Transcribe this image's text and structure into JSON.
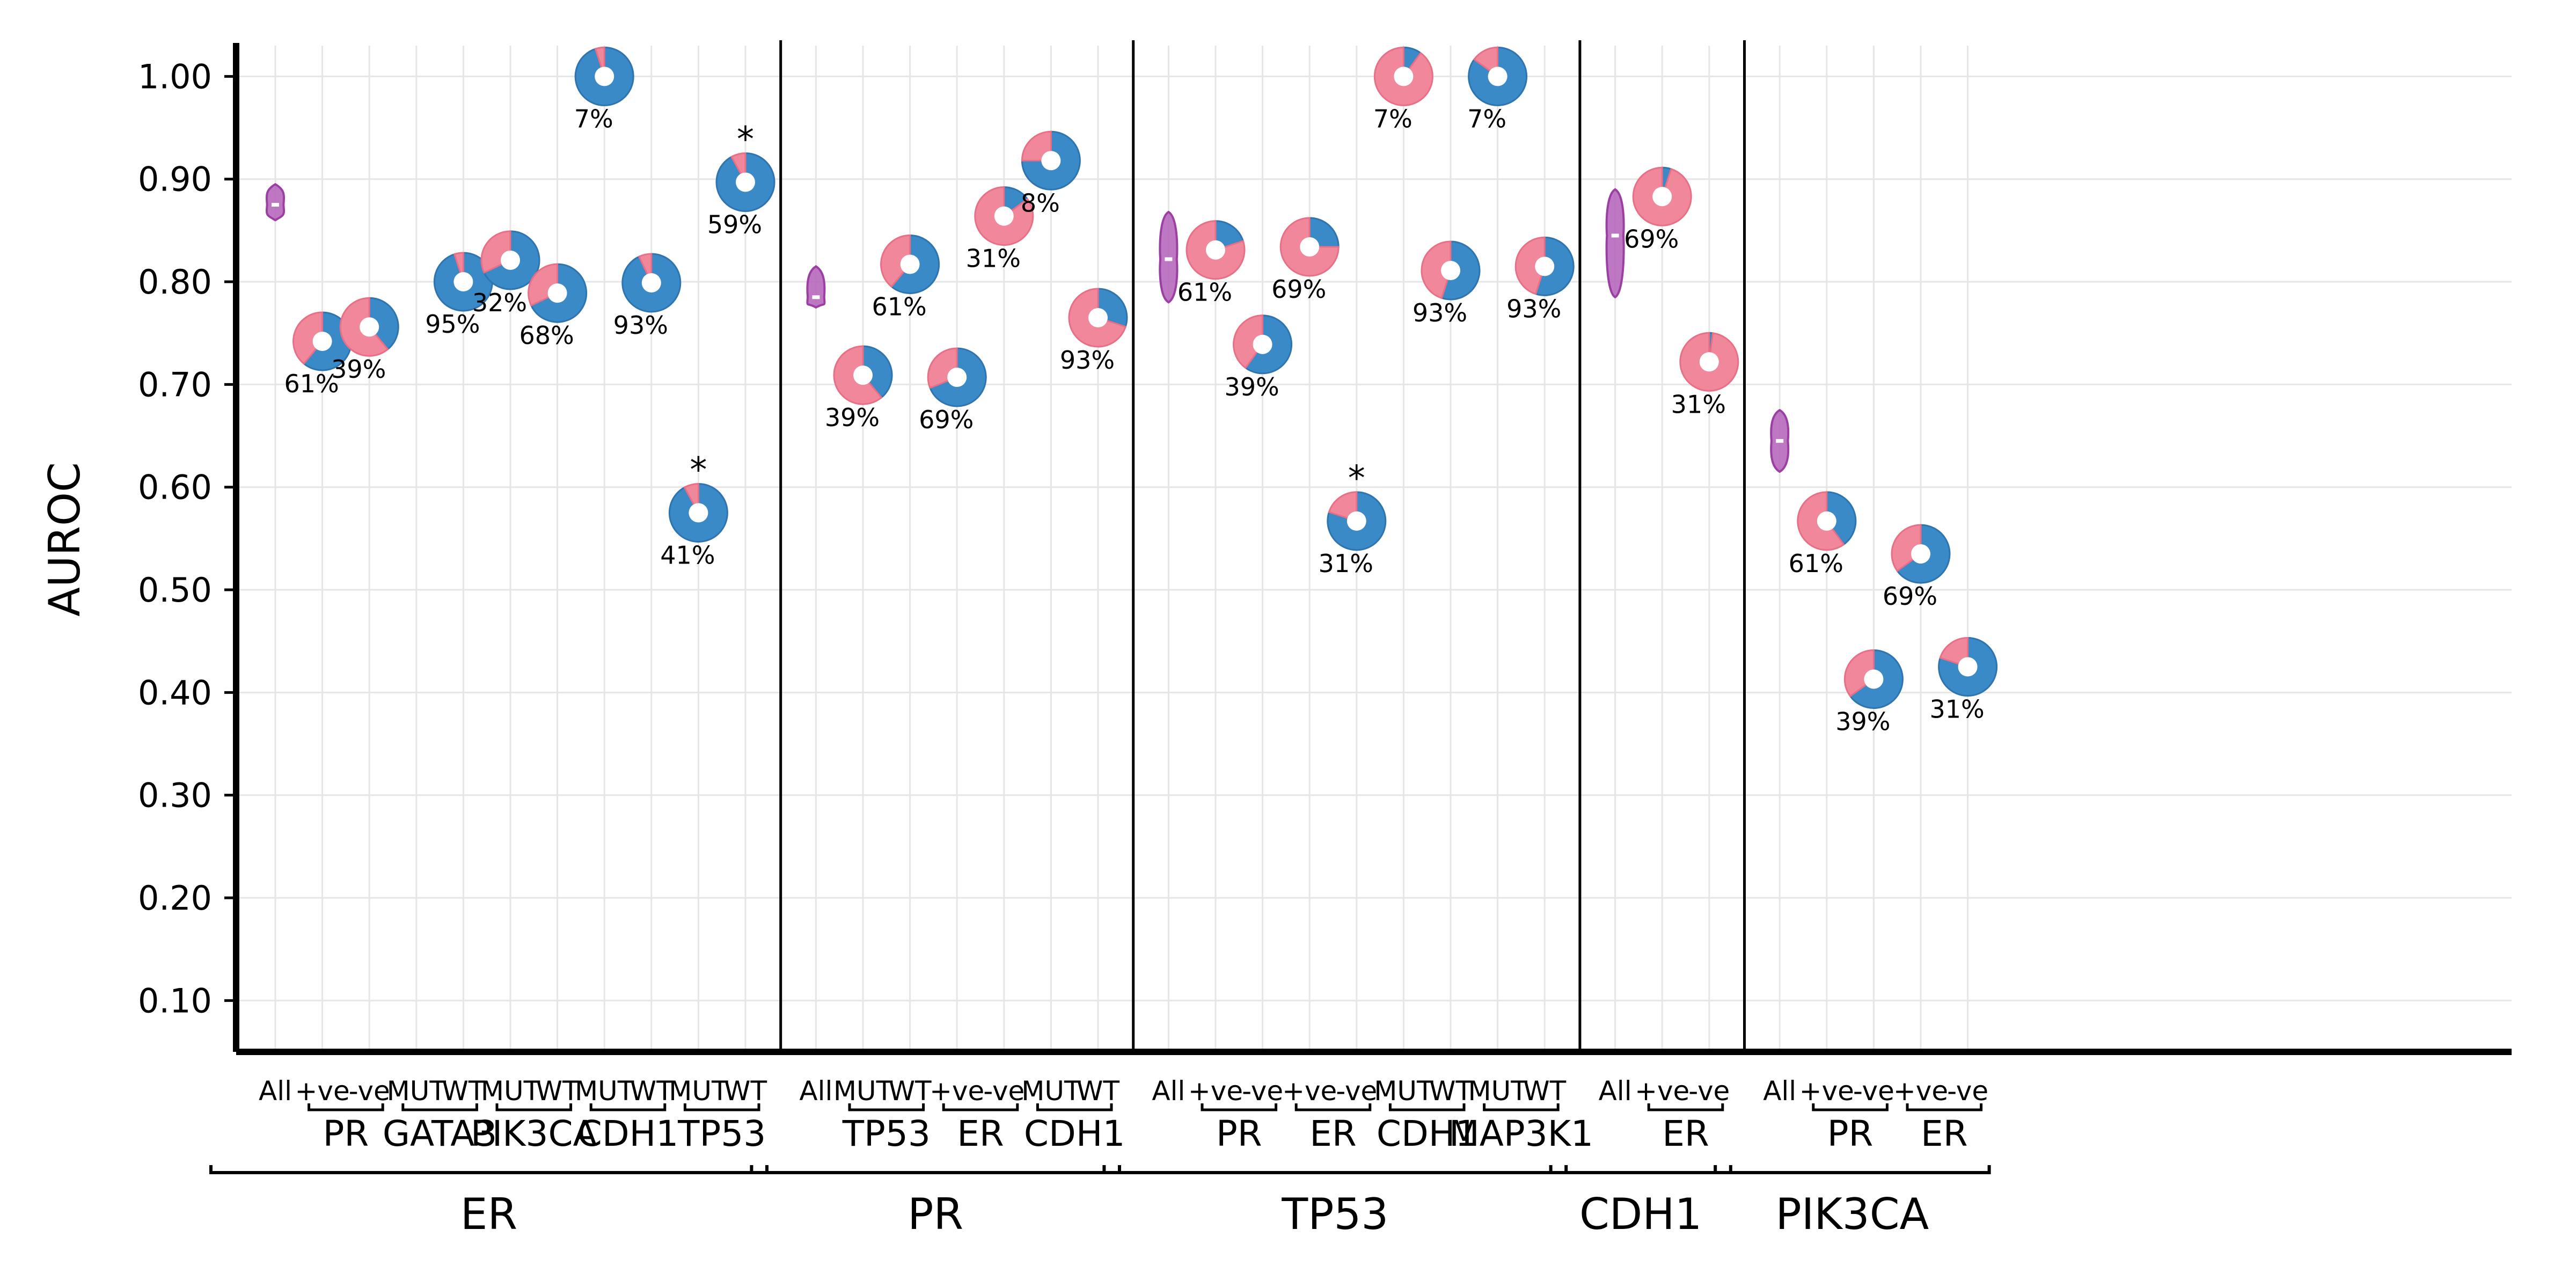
{
  "chart_data": {
    "type": "scatter",
    "ylabel": "AUROC",
    "ylim": [
      0.05,
      1.03
    ],
    "yticks": [
      "0.10",
      "0.20",
      "0.30",
      "0.40",
      "0.50",
      "0.60",
      "0.70",
      "0.80",
      "0.90",
      "1.00"
    ],
    "grid": true,
    "colors": {
      "pos": "#f0879a",
      "neg": "#3a8ac8",
      "violin": "#b35fb8",
      "violin_edge": "#9b3fa3"
    },
    "panels": [
      {
        "label": "ER",
        "violin": {
          "label": "All",
          "median": 0.875,
          "min": 0.86,
          "max": 0.895
        },
        "groups": [
          {
            "label": "PR",
            "points": [
              {
                "label": "+ve",
                "auroc": 0.742,
                "pct": "61%",
                "share": 0.61
              },
              {
                "label": "-ve",
                "auroc": 0.756,
                "pct": "39%",
                "share": 0.39
              }
            ]
          },
          {
            "label": "GATA3",
            "points": [
              {
                "label": "MUT",
                "auroc": null
              },
              {
                "label": "WT",
                "auroc": 0.8,
                "pct": "95%",
                "share": 0.95
              }
            ]
          },
          {
            "label": "PIK3CA",
            "points": [
              {
                "label": "MUT",
                "auroc": 0.821,
                "pct": "32%",
                "share": 0.68
              },
              {
                "label": "WT",
                "auroc": 0.789,
                "pct": "68%",
                "share": 0.68
              }
            ]
          },
          {
            "label": "CDH1",
            "points": [
              {
                "label": "MUT",
                "auroc": 1.0,
                "pct": "7%",
                "share": 0.95
              },
              {
                "label": "WT",
                "auroc": 0.799,
                "pct": "93%",
                "share": 0.93
              }
            ]
          },
          {
            "label": "TP53",
            "points": [
              {
                "label": "MUT",
                "auroc": 0.575,
                "pct": "41%",
                "share": 0.92,
                "sig": "*"
              },
              {
                "label": "WT",
                "auroc": 0.897,
                "pct": "59%",
                "share": 0.92,
                "sig": "*"
              }
            ]
          }
        ]
      },
      {
        "label": "PR",
        "violin": {
          "label": "All",
          "median": 0.785,
          "min": 0.775,
          "max": 0.815
        },
        "groups": [
          {
            "label": "TP53",
            "points": [
              {
                "label": "MUT",
                "auroc": 0.709,
                "pct": "39%",
                "share": 0.39
              },
              {
                "label": "WT",
                "auroc": 0.817,
                "pct": "61%",
                "share": 0.61
              }
            ]
          },
          {
            "label": "ER",
            "points": [
              {
                "label": "+ve",
                "auroc": 0.707,
                "pct": "69%",
                "share": 0.69
              },
              {
                "label": "-ve",
                "auroc": 0.864,
                "pct": "31%",
                "share": 0.15
              }
            ]
          },
          {
            "label": "CDH1",
            "points": [
              {
                "label": "MUT",
                "auroc": 0.918,
                "pct": "8%",
                "share": 0.75
              },
              {
                "label": "WT",
                "auroc": 0.765,
                "pct": "93%",
                "share": 0.3
              }
            ]
          }
        ]
      },
      {
        "label": "TP53",
        "violin": {
          "label": "All",
          "median": 0.822,
          "min": 0.78,
          "max": 0.868
        },
        "groups": [
          {
            "label": "PR",
            "points": [
              {
                "label": "+ve",
                "auroc": 0.831,
                "pct": "61%",
                "share": 0.2
              },
              {
                "label": "-ve",
                "auroc": 0.739,
                "pct": "39%",
                "share": 0.6
              }
            ]
          },
          {
            "label": "ER",
            "points": [
              {
                "label": "+ve",
                "auroc": 0.834,
                "pct": "69%",
                "share": 0.25
              },
              {
                "label": "-ve",
                "auroc": 0.567,
                "pct": "31%",
                "share": 0.8,
                "sig": "*"
              }
            ]
          },
          {
            "label": "CDH1",
            "points": [
              {
                "label": "MUT",
                "auroc": 1.0,
                "pct": "7%",
                "share": 0.1
              },
              {
                "label": "WT",
                "auroc": 0.811,
                "pct": "93%",
                "share": 0.55
              }
            ]
          },
          {
            "label": "MAP3K1",
            "points": [
              {
                "label": "MUT",
                "auroc": 1.0,
                "pct": "7%",
                "share": 0.85
              },
              {
                "label": "WT",
                "auroc": 0.815,
                "pct": "93%",
                "share": 0.55
              }
            ]
          }
        ]
      },
      {
        "label": "CDH1",
        "violin": {
          "label": "All",
          "median": 0.845,
          "min": 0.785,
          "max": 0.89
        },
        "groups": [
          {
            "label": "ER",
            "points": [
              {
                "label": "+ve",
                "auroc": 0.883,
                "pct": "69%",
                "share": 0.05
              },
              {
                "label": "-ve",
                "auroc": 0.722,
                "pct": "31%",
                "share": 0.02
              }
            ]
          }
        ]
      },
      {
        "label": "PIK3CA",
        "violin": {
          "label": "All",
          "median": 0.645,
          "min": 0.615,
          "max": 0.675
        },
        "groups": [
          {
            "label": "PR",
            "points": [
              {
                "label": "+ve",
                "auroc": 0.567,
                "pct": "61%",
                "share": 0.4
              },
              {
                "label": "-ve",
                "auroc": 0.413,
                "pct": "39%",
                "share": 0.65
              }
            ]
          },
          {
            "label": "ER",
            "points": [
              {
                "label": "+ve",
                "auroc": 0.535,
                "pct": "69%",
                "share": 0.65
              },
              {
                "label": "-ve",
                "auroc": 0.425,
                "pct": "31%",
                "share": 0.8
              }
            ]
          }
        ]
      }
    ]
  }
}
